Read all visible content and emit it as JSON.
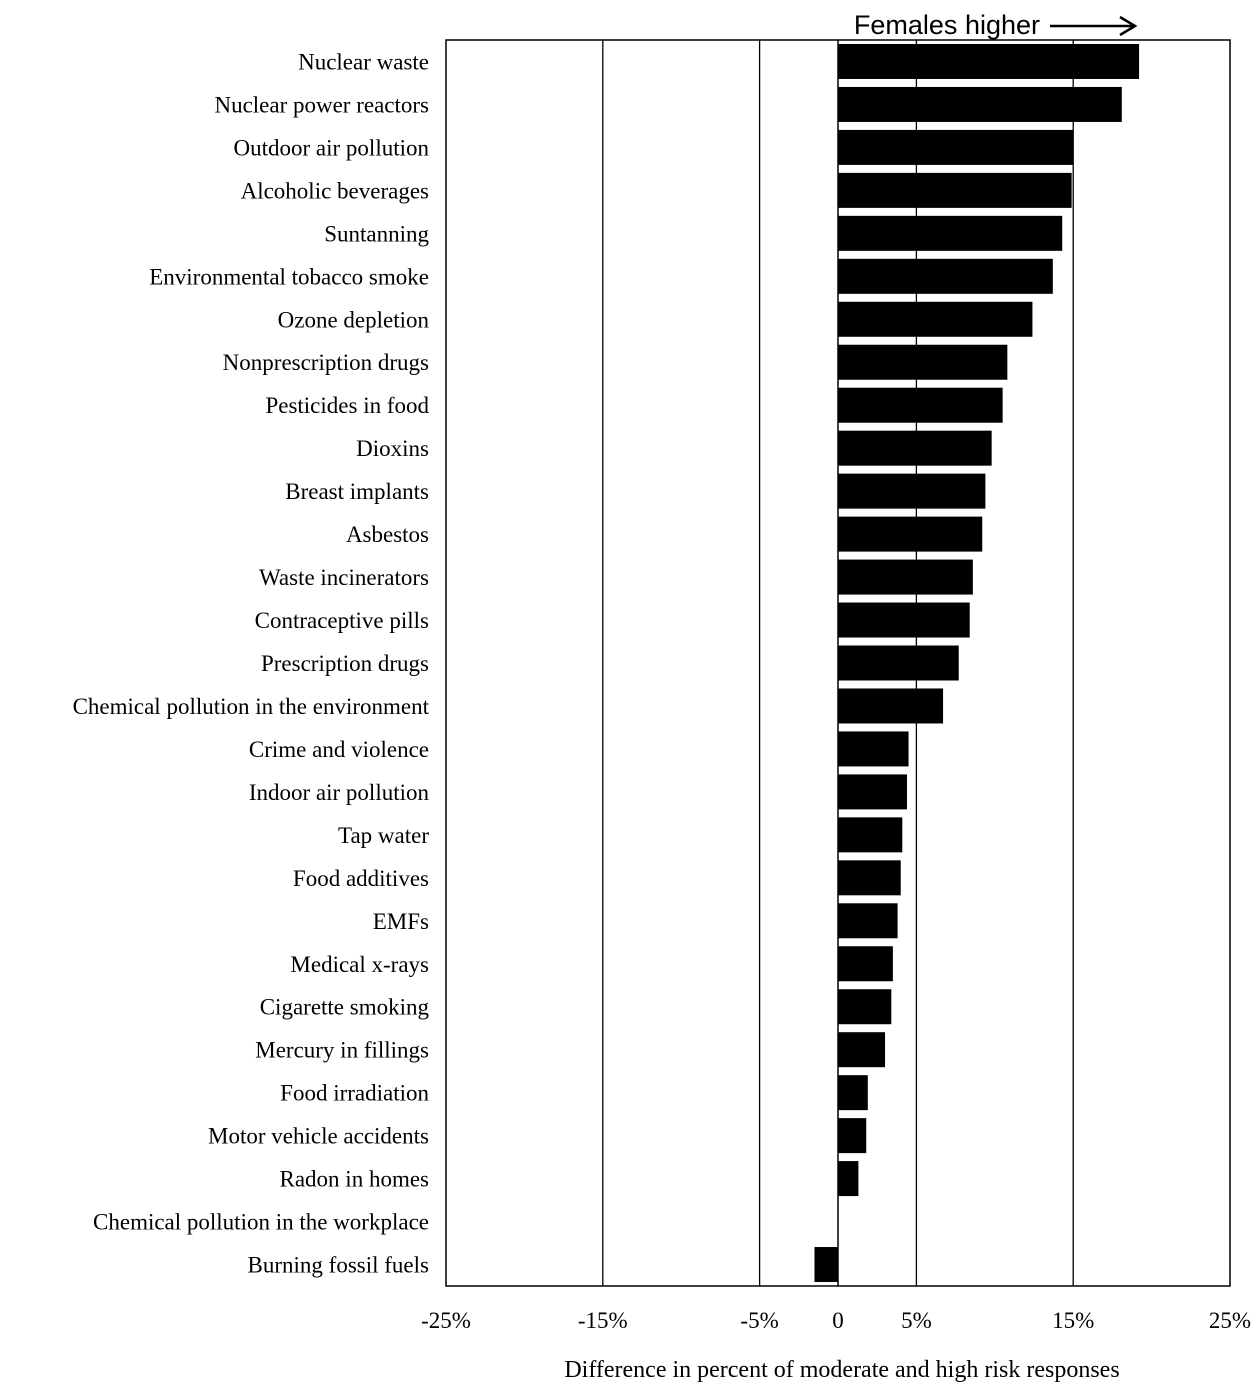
{
  "chart_data": {
    "type": "bar",
    "orientation": "horizontal",
    "annotation": "Females higher",
    "xlabel": "Difference in percent of moderate and high risk responses",
    "xlim": [
      -25,
      25
    ],
    "x_ticks": [
      -25,
      -15,
      -5,
      0,
      5,
      15,
      25
    ],
    "x_tick_labels": [
      "-25%",
      "-15%",
      "-5%",
      "0",
      "5%",
      "15%",
      "25%"
    ],
    "gridlines_at": [
      -15,
      -5,
      5,
      15
    ],
    "bar_color": "#000000",
    "categories": [
      "Nuclear waste",
      "Nuclear power reactors",
      "Outdoor air pollution",
      "Alcoholic beverages",
      "Suntanning",
      "Environmental tobacco smoke",
      "Ozone depletion",
      "Nonprescription drugs",
      "Pesticides in food",
      "Dioxins",
      "Breast implants",
      "Asbestos",
      "Waste incinerators",
      "Contraceptive pills",
      "Prescription drugs",
      "Chemical pollution in the environment",
      "Crime and violence",
      "Indoor air pollution",
      "Tap water",
      "Food additives",
      "EMFs",
      "Medical x-rays",
      "Cigarette smoking",
      "Mercury in fillings",
      "Food irradiation",
      "Motor vehicle accidents",
      "Radon in homes",
      "Chemical pollution in the workplace",
      "Burning fossil fuels"
    ],
    "values": [
      19.2,
      18.1,
      15.0,
      14.9,
      14.3,
      13.7,
      12.4,
      10.8,
      10.5,
      9.8,
      9.4,
      9.2,
      8.6,
      8.4,
      7.7,
      6.7,
      4.5,
      4.4,
      4.1,
      4.0,
      3.8,
      3.5,
      3.4,
      3.0,
      1.9,
      1.8,
      1.3,
      0.0,
      -1.5
    ]
  }
}
